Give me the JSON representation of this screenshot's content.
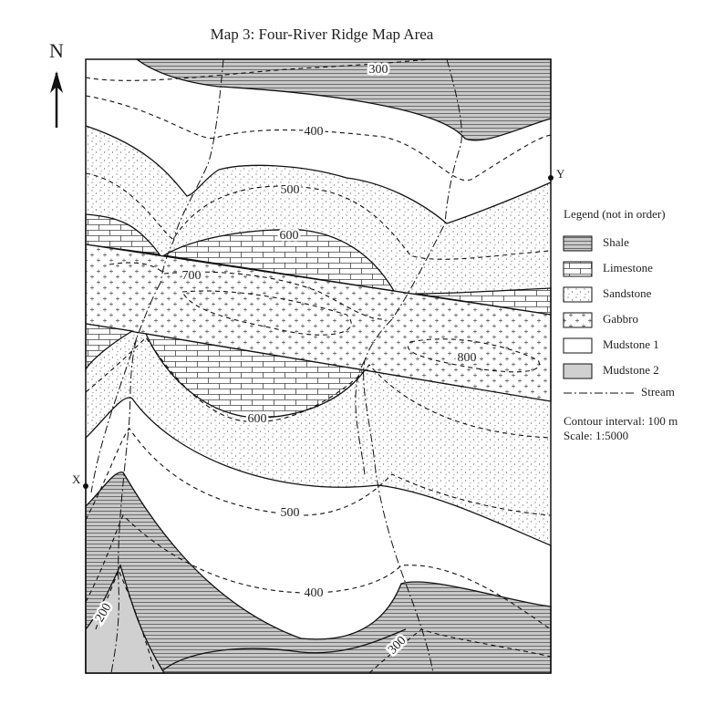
{
  "title": "Map 3: Four-River Ridge Map Area",
  "north": "N",
  "points": {
    "x": "X",
    "y": "Y"
  },
  "legend": {
    "title": "Legend (not in order)",
    "items": [
      "Shale",
      "Limestone",
      "Sandstone",
      "Gabbro",
      "Mudstone 1",
      "Mudstone 2"
    ],
    "stream": "Stream"
  },
  "notes": [
    "Contour interval: 100 m",
    "Scale: 1:5000"
  ],
  "contour_labels": [
    "300",
    "400",
    "500",
    "600",
    "700",
    "800",
    "600",
    "500",
    "400",
    "200",
    "300"
  ]
}
